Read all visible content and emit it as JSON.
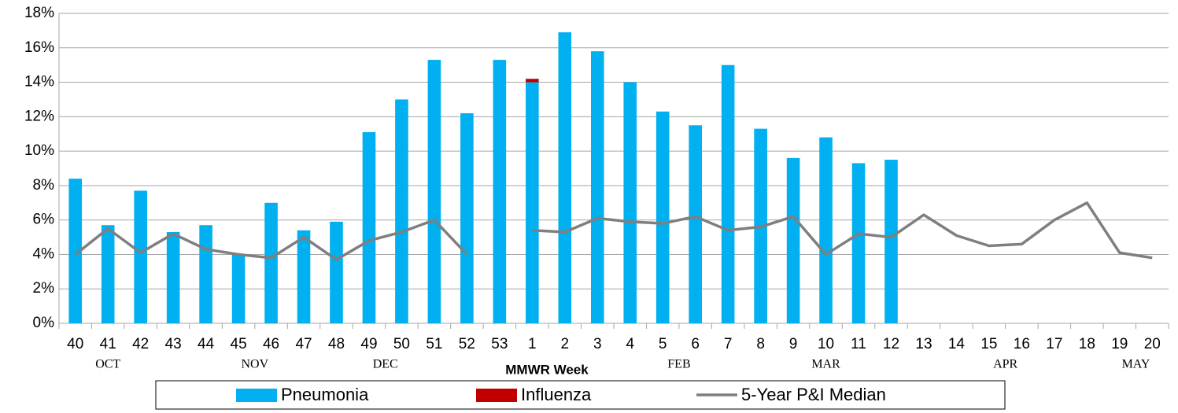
{
  "chart_data": {
    "type": "bar",
    "x_label": "MMWR Week",
    "categories": [
      "40",
      "41",
      "42",
      "43",
      "44",
      "45",
      "46",
      "47",
      "48",
      "49",
      "50",
      "51",
      "52",
      "53",
      "1",
      "2",
      "3",
      "4",
      "5",
      "6",
      "7",
      "8",
      "9",
      "10",
      "11",
      "12",
      "13",
      "14",
      "15",
      "16",
      "17",
      "18",
      "19",
      "20"
    ],
    "months": [
      "OCT",
      "NOV",
      "DEC",
      "FEB",
      "MAR",
      "APR",
      "MAY"
    ],
    "series": [
      {
        "name": "Pneumonia",
        "color": "#00b0f0",
        "type": "bar",
        "values": [
          8.4,
          5.7,
          7.7,
          5.3,
          5.7,
          4.0,
          7.0,
          5.4,
          5.9,
          11.1,
          13.0,
          15.3,
          12.2,
          15.3,
          14.0,
          16.9,
          15.8,
          14.0,
          12.3,
          11.5,
          15.0,
          11.3,
          9.6,
          10.8,
          9.3,
          9.5,
          null,
          null,
          null,
          null,
          null,
          null,
          null,
          null
        ]
      },
      {
        "name": "Influenza",
        "color": "#c00000",
        "type": "bar",
        "values": [
          0,
          0,
          0,
          0,
          0,
          0,
          0,
          0,
          0,
          0,
          0,
          0,
          0,
          0,
          0.2,
          0,
          0,
          0,
          0,
          0,
          0,
          0,
          0,
          0,
          0,
          0,
          null,
          null,
          null,
          null,
          null,
          null,
          null,
          null
        ]
      },
      {
        "name": "5-Year P&I Median",
        "color": "#7f7f7f",
        "type": "line",
        "values": [
          4.0,
          5.5,
          4.1,
          5.2,
          4.3,
          4.0,
          3.8,
          5.0,
          3.7,
          4.8,
          5.3,
          6.0,
          4.0,
          null,
          5.4,
          5.3,
          6.1,
          5.9,
          5.8,
          6.2,
          5.4,
          5.6,
          6.2,
          4.0,
          5.2,
          5.0,
          6.3,
          5.1,
          4.5,
          4.6,
          6.0,
          7.0,
          4.1,
          3.8
        ]
      }
    ],
    "stacked": true,
    "ylim": [
      0,
      18
    ],
    "yticks": [
      {
        "value": 0,
        "label": "0%"
      },
      {
        "value": 2,
        "label": "2%"
      },
      {
        "value": 4,
        "label": "4%"
      },
      {
        "value": 6,
        "label": "6%"
      },
      {
        "value": 8,
        "label": "8%"
      },
      {
        "value": 10,
        "label": "10%"
      },
      {
        "value": 12,
        "label": "12%"
      },
      {
        "value": 14,
        "label": "14%"
      },
      {
        "value": 16,
        "label": "16%"
      },
      {
        "value": 18,
        "label": "18%"
      }
    ],
    "grid": true
  }
}
